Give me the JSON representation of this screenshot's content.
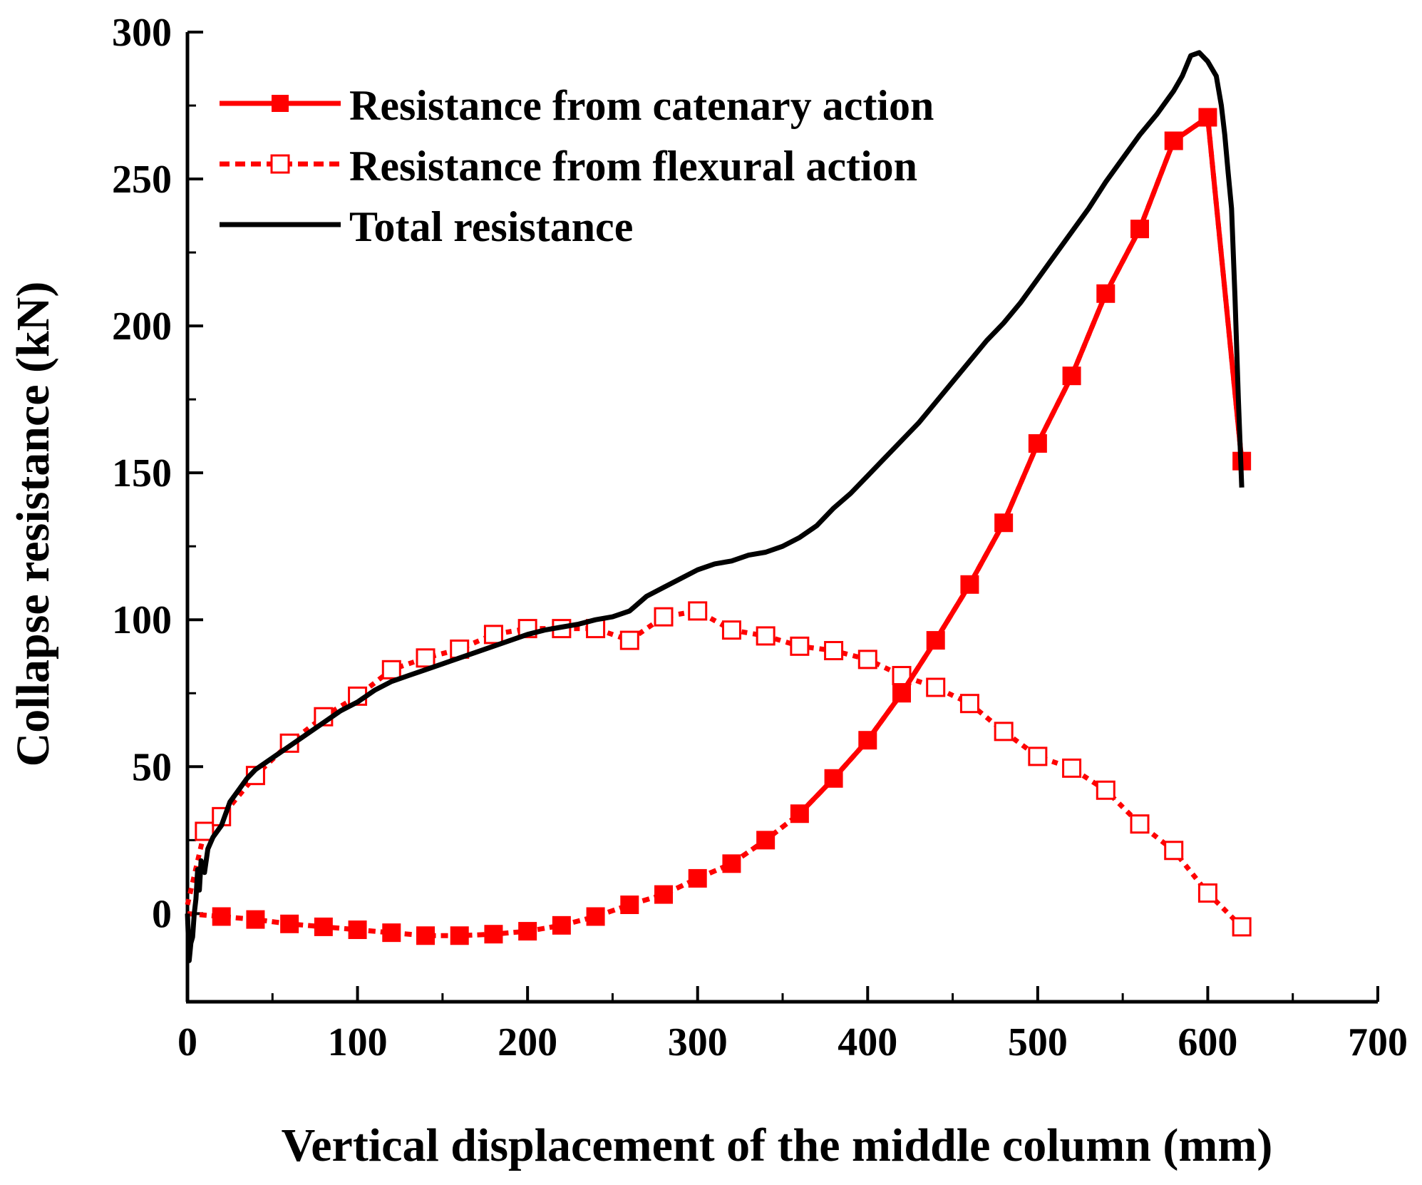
{
  "chart_data": {
    "type": "line",
    "xlabel": "Vertical displacement of the middle column (mm)",
    "ylabel": "Collapse resistance (kN)",
    "xlim": [
      0,
      700
    ],
    "ylim": [
      -30,
      300
    ],
    "xticks": [
      0,
      100,
      200,
      300,
      400,
      500,
      600,
      700
    ],
    "yticks": [
      0,
      50,
      100,
      150,
      200,
      250,
      300
    ],
    "legend_position": "top-left",
    "colors": {
      "catenary": "#ff0000",
      "flexural": "#ff0000",
      "total": "#000000"
    },
    "series": [
      {
        "name": "Resistance from catenary action",
        "style": "solid-filled-square",
        "x": [
          0,
          20,
          40,
          60,
          80,
          100,
          120,
          140,
          160,
          180,
          200,
          220,
          240,
          260,
          280,
          300,
          320,
          340,
          360,
          380,
          400,
          420,
          440,
          460,
          480,
          500,
          520,
          540,
          560,
          580,
          600,
          620
        ],
        "y": [
          0,
          -1,
          -2,
          -3.5,
          -4.5,
          -5.5,
          -6.5,
          -7.5,
          -7.5,
          -7,
          -6,
          -4,
          -1,
          3,
          6.5,
          12,
          17,
          25,
          34,
          46,
          59,
          75,
          93,
          112,
          133,
          160,
          183,
          211,
          233,
          263,
          271,
          154
        ]
      },
      {
        "name": "Resistance from flexural action",
        "style": "dashed-open-square",
        "x": [
          0,
          10,
          20,
          40,
          60,
          80,
          100,
          120,
          140,
          160,
          180,
          200,
          220,
          240,
          260,
          280,
          300,
          320,
          340,
          360,
          380,
          400,
          420,
          440,
          460,
          480,
          500,
          520,
          540,
          560,
          580,
          600,
          620
        ],
        "y": [
          3,
          28,
          33,
          47,
          58,
          67,
          74,
          83,
          87,
          90,
          95,
          97,
          97,
          97,
          93,
          101,
          103,
          96.5,
          94.5,
          91,
          89.5,
          86.5,
          81,
          77,
          71.5,
          62,
          53.5,
          49.5,
          42,
          30.5,
          21.5,
          7,
          -4.5
        ]
      },
      {
        "name": "Total resistance",
        "style": "solid",
        "x": [
          0,
          1,
          2,
          3,
          4,
          5,
          6,
          7,
          8,
          10,
          12,
          15,
          20,
          25,
          30,
          35,
          40,
          50,
          60,
          70,
          80,
          90,
          100,
          110,
          120,
          130,
          140,
          150,
          160,
          170,
          180,
          190,
          200,
          210,
          220,
          230,
          240,
          250,
          260,
          270,
          280,
          290,
          300,
          310,
          320,
          330,
          340,
          350,
          360,
          370,
          380,
          390,
          400,
          410,
          420,
          430,
          440,
          450,
          460,
          470,
          480,
          490,
          500,
          510,
          520,
          530,
          540,
          550,
          560,
          570,
          580,
          585,
          590,
          595,
          600,
          605,
          608,
          610,
          612,
          614,
          616,
          618,
          620
        ],
        "y": [
          0,
          -16,
          -10,
          -8,
          0,
          5,
          15,
          8,
          18,
          14,
          22,
          26,
          30,
          38,
          42,
          46,
          49,
          53,
          57,
          61,
          65,
          69,
          72,
          76,
          79,
          81,
          83,
          85,
          87,
          89,
          91,
          93,
          95,
          96.5,
          97.5,
          98.5,
          100,
          101,
          103,
          108,
          111,
          114,
          117,
          119,
          120,
          122,
          123,
          125,
          128,
          132,
          138,
          143,
          149,
          155,
          161,
          167,
          174,
          181,
          188,
          195,
          201,
          208,
          216,
          224,
          232,
          240,
          249,
          257,
          265,
          272,
          280,
          285,
          292,
          293,
          290,
          285,
          275,
          265,
          252,
          240,
          210,
          175,
          145
        ]
      }
    ]
  }
}
